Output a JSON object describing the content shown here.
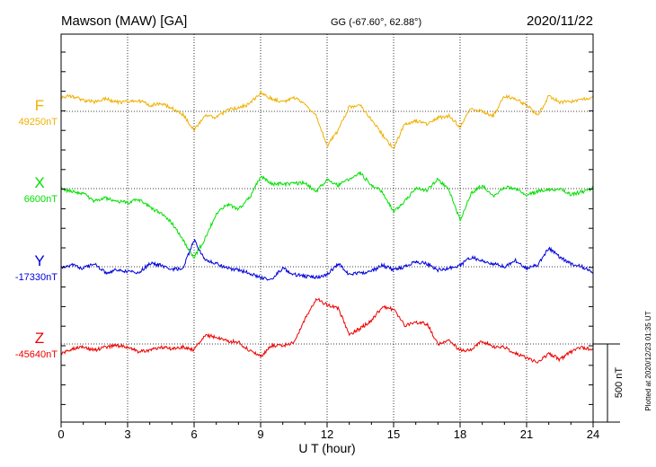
{
  "header": {
    "station": "Mawson (MAW)  [GA]",
    "coords": "GG (-67.60°,  62.88°)",
    "date": "2020/11/22"
  },
  "footer": {
    "plotted": "Plotted at 2020/12/23 01:35 UT"
  },
  "chart_data": {
    "type": "line",
    "xlabel": "U T (hour)",
    "xlim": [
      0,
      24
    ],
    "xticks": [
      "0",
      "3",
      "6",
      "9",
      "12",
      "15",
      "18",
      "21",
      "24"
    ],
    "grid": true,
    "scale_bar": {
      "label": "500 nT",
      "value_nT": 500
    },
    "colors": {
      "F": "#f0b000",
      "X": "#00e000",
      "Y": "#0000dd",
      "Z": "#ee0000"
    },
    "x": [
      0,
      0.5,
      1,
      1.5,
      2,
      2.5,
      3,
      3.5,
      4,
      4.5,
      5,
      5.5,
      6,
      6.5,
      7,
      7.5,
      8,
      8.5,
      9,
      9.5,
      10,
      10.5,
      11,
      11.5,
      12,
      12.5,
      13,
      13.5,
      14,
      14.5,
      15,
      15.5,
      16,
      16.5,
      17,
      17.5,
      18,
      18.5,
      19,
      19.5,
      20,
      20.5,
      21,
      21.5,
      22,
      22.5,
      23,
      23.5,
      24
    ],
    "series": [
      {
        "name": "F",
        "baseline": "49250nT",
        "baseline_nT": 49250,
        "offsets_nT": [
          90,
          100,
          70,
          60,
          80,
          60,
          60,
          70,
          40,
          50,
          20,
          -20,
          -120,
          -30,
          -40,
          10,
          20,
          50,
          120,
          80,
          60,
          90,
          50,
          -30,
          -220,
          -120,
          30,
          40,
          -50,
          -150,
          -240,
          -80,
          -60,
          -80,
          -40,
          -30,
          -100,
          20,
          0,
          -30,
          100,
          80,
          40,
          -30,
          100,
          60,
          60,
          80,
          90
        ]
      },
      {
        "name": "X",
        "baseline": "6600nT",
        "baseline_nT": 6600,
        "offsets_nT": [
          0,
          -20,
          -30,
          -80,
          -60,
          -80,
          -90,
          -70,
          -120,
          -160,
          -220,
          -330,
          -440,
          -320,
          -160,
          -100,
          -130,
          -60,
          80,
          30,
          30,
          30,
          40,
          -20,
          60,
          20,
          60,
          100,
          20,
          -20,
          -150,
          -80,
          0,
          -10,
          60,
          -10,
          -200,
          -30,
          20,
          -50,
          10,
          0,
          -40,
          -20,
          -10,
          0,
          -40,
          -20,
          0
        ]
      },
      {
        "name": "Y",
        "baseline": "-17330nT",
        "baseline_nT": -17330,
        "offsets_nT": [
          0,
          10,
          -10,
          20,
          -40,
          -20,
          -30,
          -40,
          20,
          10,
          -20,
          -10,
          170,
          40,
          20,
          -10,
          -20,
          -40,
          -70,
          -80,
          -10,
          -50,
          -60,
          -70,
          -50,
          20,
          -50,
          -40,
          -30,
          10,
          -20,
          0,
          30,
          20,
          -20,
          -10,
          10,
          60,
          40,
          20,
          0,
          40,
          -10,
          10,
          120,
          60,
          20,
          0,
          -40
        ]
      },
      {
        "name": "Z",
        "baseline": "-45640nT",
        "baseline_nT": -45640,
        "offsets_nT": [
          -60,
          -30,
          -20,
          -40,
          -20,
          -10,
          -20,
          -50,
          -40,
          -20,
          -30,
          -20,
          -40,
          60,
          40,
          20,
          10,
          -40,
          -80,
          -10,
          -10,
          10,
          160,
          290,
          250,
          230,
          60,
          100,
          150,
          240,
          220,
          120,
          140,
          130,
          0,
          20,
          -40,
          -40,
          20,
          -20,
          -20,
          -60,
          -90,
          -120,
          -60,
          -100,
          -50,
          -20,
          -40
        ]
      }
    ]
  }
}
